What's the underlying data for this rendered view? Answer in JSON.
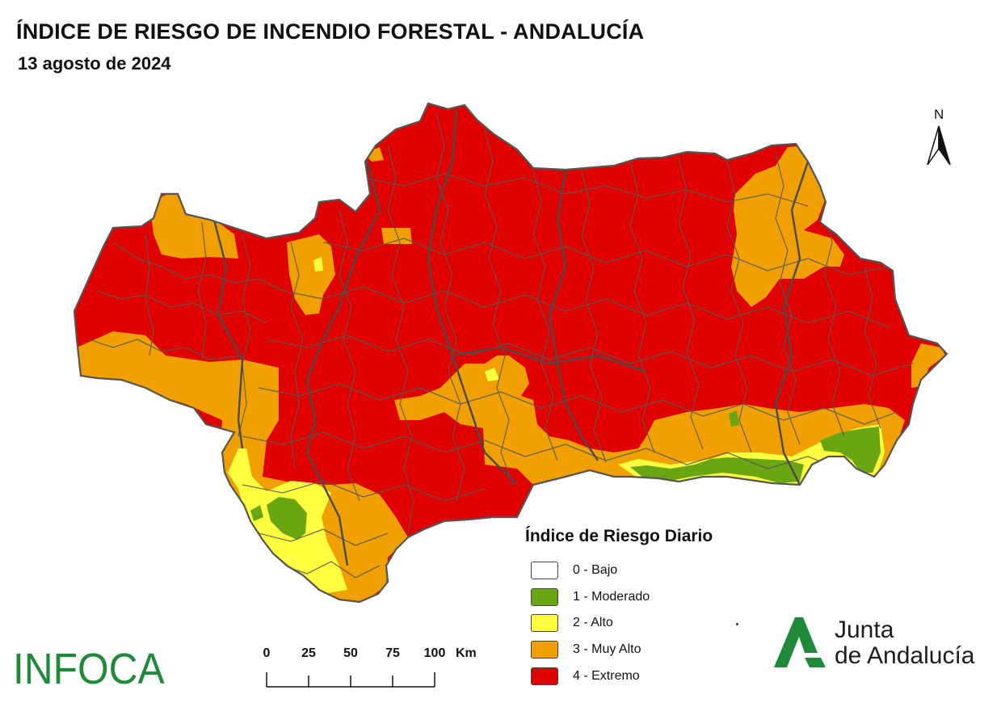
{
  "header": {
    "title": "ÍNDICE DE RIESGO DE INCENDIO FORESTAL - ANDALUCÍA",
    "date": "13 agosto de 2024"
  },
  "north_arrow": {
    "label": "N"
  },
  "legend": {
    "title": "Índice de Riesgo Diario",
    "items": [
      {
        "label": "0 - Bajo",
        "color": "#ffffff"
      },
      {
        "label": "1 - Moderado",
        "color": "#6aa614"
      },
      {
        "label": "2 - Alto",
        "color": "#ffff40"
      },
      {
        "label": "3 - Muy Alto",
        "color": "#f0a000"
      },
      {
        "label": "4 - Extremo",
        "color": "#e00000"
      }
    ]
  },
  "scale_bar": {
    "ticks": [
      "0",
      "25",
      "50",
      "75",
      "100"
    ],
    "unit": "Km"
  },
  "logos": {
    "infoca": "INFOCA",
    "junta_line1": "Junta",
    "junta_line2": "de Andalucía"
  },
  "map": {
    "region": "Andalucía",
    "colors": {
      "extremo": "#e00000",
      "muy_alto": "#f0a000",
      "alto": "#ffff40",
      "moderado": "#6aa614",
      "border": "#555555"
    }
  }
}
